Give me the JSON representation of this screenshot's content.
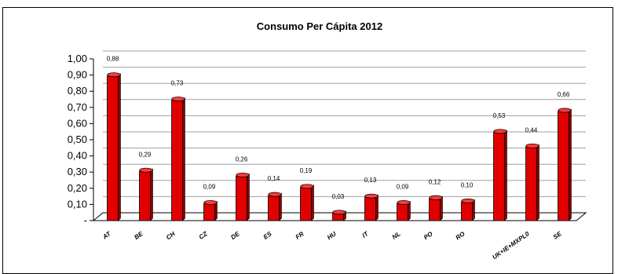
{
  "chart_data": {
    "type": "bar",
    "title": "Consumo Per Cápita 2012",
    "xlabel": "",
    "ylabel": "",
    "ylim": [
      0,
      1
    ],
    "grid": true,
    "legend": "none",
    "bar_color": "#e00000",
    "y_ticks": [
      "-",
      "0,10",
      "0,20",
      "0,30",
      "0,40",
      "0,50",
      "0,60",
      "0,70",
      "0,80",
      "0,90",
      "1,00"
    ],
    "categories": [
      "AT",
      "BE",
      "CH",
      "CZ",
      "DE",
      "ES",
      "FR",
      "HU",
      "IT",
      "NL",
      "PO",
      "RO",
      "",
      "UK+IE+MXPL0",
      "SE"
    ],
    "values": [
      0.88,
      0.29,
      0.73,
      0.09,
      0.26,
      0.14,
      0.19,
      0.03,
      0.13,
      0.09,
      0.12,
      0.1,
      0.53,
      0.44,
      0.66
    ],
    "data_labels": [
      "0,88",
      "0,29",
      "0,73",
      "0,09",
      "0,26",
      "0,14",
      "0,19",
      "0,03",
      "0,13",
      "0,09",
      "0,12",
      "0,10",
      "0,53",
      "0,44",
      "0,66"
    ]
  }
}
